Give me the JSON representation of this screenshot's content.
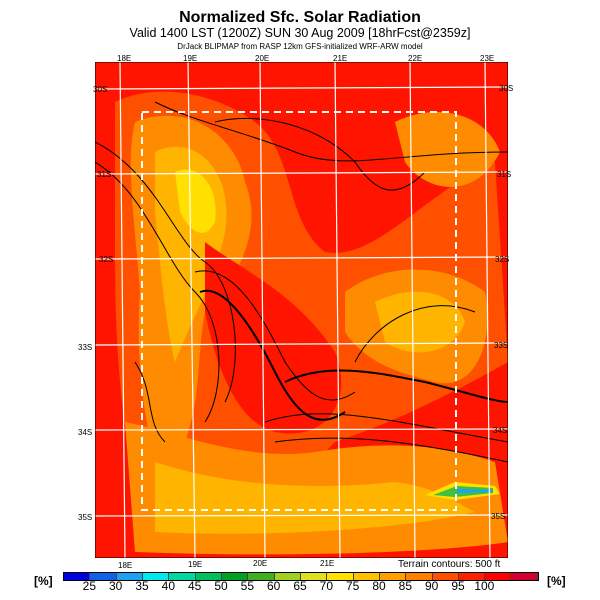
{
  "title": "Normalized Sfc. Solar Radiation",
  "subtitle": "Valid 1400 LST (1200Z) SUN 30 Aug 2009 [18hrFcst@2359z]",
  "credit": "DrJack BLIPMAP from RASP 12km GFS-initialized WRF-ARW model",
  "top_lon_labels": [
    "18E",
    "19E",
    "20E",
    "21E",
    "22E",
    "23E"
  ],
  "bottom_lon_labels": [
    "18E",
    "19E",
    "20E",
    "21E"
  ],
  "left_lat_labels": [
    "30S",
    "31S",
    "32S",
    "33S",
    "34S",
    "35S"
  ],
  "right_lat_labels": [
    "30S",
    "31S",
    "32S",
    "33S",
    "34S",
    "35S"
  ],
  "terrain_note": "Terrain contours: 500 ft",
  "colorbar": {
    "unit_left": "[%]",
    "unit_right": "[%]",
    "labels": [
      "25",
      "30",
      "35",
      "40",
      "45",
      "50",
      "55",
      "60",
      "65",
      "70",
      "75",
      "80",
      "85",
      "90",
      "95",
      "100"
    ],
    "colors": [
      "#0000e0",
      "#1060e8",
      "#20a0f0",
      "#00e8f0",
      "#00d8a0",
      "#00c060",
      "#00a020",
      "#40b020",
      "#a0d020",
      "#e0e020",
      "#ffe000",
      "#ffc000",
      "#ffa000",
      "#ff8000",
      "#ff5000",
      "#ff2000",
      "#ff0000",
      "#d00030"
    ]
  },
  "palette": {
    "red": "#ff1400",
    "orange_red": "#ff5000",
    "orange": "#ff8c00",
    "amber": "#ffb400",
    "yellow": "#ffe000"
  }
}
